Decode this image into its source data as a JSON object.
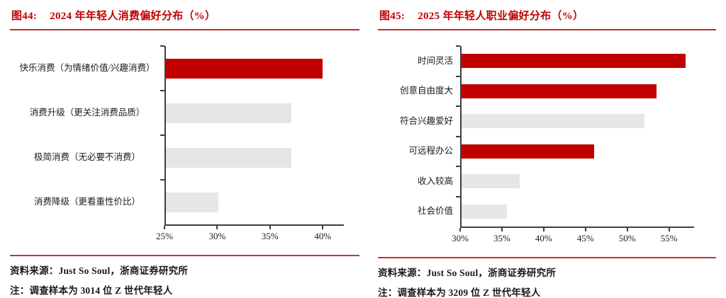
{
  "colors": {
    "accent": "#c00000",
    "muted_bar": "#e6e6e6",
    "axis": "#3f3f3f",
    "title_rule": "#b23131",
    "footer_rule": "#c03535"
  },
  "figures": [
    {
      "label": "图44:",
      "title": "2024 年年轻人消费偏好分布（%）",
      "source": "资料来源：Just So Soul，浙商证券研究所",
      "note": "注：调查样本为 3014 位 Z 世代年轻人",
      "chart_data": {
        "type": "bar",
        "orientation": "horizontal",
        "title": "2024 年年轻人消费偏好分布（%）",
        "categories": [
          "快乐消费（为情绪价值/兴趣消费）",
          "消费升级（更关注消费品质）",
          "极简消费（无必要不消费）",
          "消费降级（更看重性价比）"
        ],
        "values": [
          40,
          37,
          37,
          30
        ],
        "unit": "%",
        "highlighted": [
          true,
          false,
          false,
          false
        ],
        "xlim": [
          25,
          42
        ],
        "xtick_values": [
          25,
          30,
          35,
          40
        ],
        "xtick_labels": [
          "25%",
          "30%",
          "35%",
          "40%"
        ],
        "grid": false,
        "legend": "none",
        "bar_color": "#c00000",
        "muted_bar_color": "#e6e6e6"
      }
    },
    {
      "label": "图45:",
      "title": "2025 年年轻人职业偏好分布（%）",
      "source": "资料来源：Just So Soul，浙商证券研究所",
      "note": "注：调查样本为 3209 位 Z 世代年轻人",
      "chart_data": {
        "type": "bar",
        "orientation": "horizontal",
        "title": "2025 年年轻人职业偏好分布（%）",
        "categories": [
          "时间灵活",
          "创意自由度大",
          "符合兴趣爱好",
          "可远程办公",
          "收入较高",
          "社会价值"
        ],
        "values": [
          57,
          53.5,
          52,
          46,
          37,
          35.5
        ],
        "unit": "%",
        "highlighted": [
          true,
          true,
          false,
          true,
          false,
          false
        ],
        "xlim": [
          30,
          58
        ],
        "xtick_values": [
          30,
          35,
          40,
          45,
          50,
          55
        ],
        "xtick_labels": [
          "30%",
          "35%",
          "40%",
          "45%",
          "50%",
          "55%"
        ],
        "grid": false,
        "legend": "none",
        "bar_color": "#c00000",
        "muted_bar_color": "#e6e6e6"
      }
    }
  ]
}
